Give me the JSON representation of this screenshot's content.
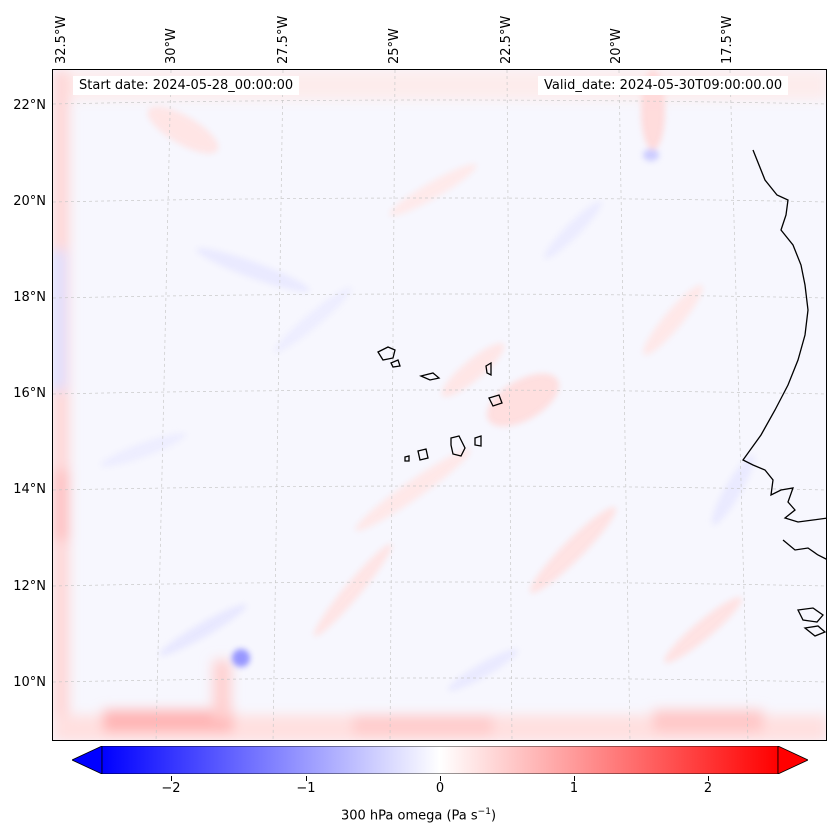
{
  "map": {
    "lon_labels": [
      "32.5°W",
      "30°W",
      "27.5°W",
      "25°W",
      "22.5°W",
      "20°W",
      "17.5°W"
    ],
    "lat_labels": [
      "22°N",
      "20°N",
      "18°N",
      "16°N",
      "14°N",
      "12°N",
      "10°N"
    ],
    "start_date_text": "Start date: 2024-05-28_00:00:00",
    "valid_date_text": "Valid_date: 2024-05-30T09:00:00.00",
    "field": "300 hPa omega",
    "colormap": "bwr",
    "colors": {
      "negative": "#0000ff",
      "zero": "#ffffff",
      "positive": "#ff0000",
      "coast": "#000000"
    }
  },
  "colorbar": {
    "ticks": [
      "−2",
      "−1",
      "0",
      "1",
      "2"
    ],
    "tick_values": [
      -2,
      -1,
      0,
      1,
      2
    ],
    "vmin": -2.5,
    "vmax": 2.5,
    "extend": "both",
    "label_main": "300 hPa omega (Pa s",
    "label_exp": "−1",
    "label_close": ")"
  }
}
